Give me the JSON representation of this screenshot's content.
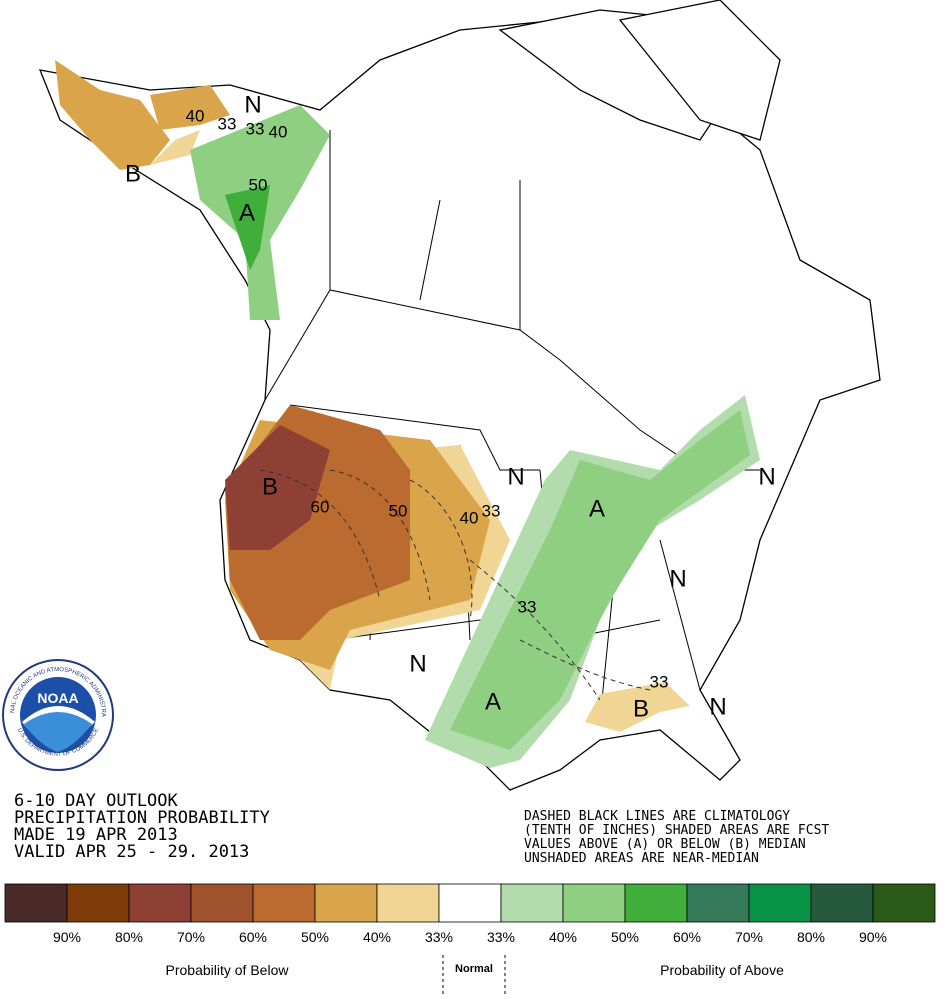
{
  "map": {
    "labels": [
      "40",
      "33",
      "33",
      "40",
      "N",
      "B",
      "50",
      "A",
      "B",
      "60",
      "50",
      "40",
      "33",
      "N",
      "A",
      "33",
      "N",
      "A",
      "N",
      "N",
      "33",
      "B",
      "N"
    ],
    "logo": {
      "name": "NOAA",
      "ring_top": "NATIONAL OCEANIC AND ATMOSPHERIC ADMINISTRATION",
      "ring_bottom": "U.S. DEPARTMENT OF COMMERCE"
    },
    "title_lines": [
      "6-10 DAY OUTLOOK",
      "PRECIPITATION PROBABILITY",
      "MADE  19 APR 2013",
      "VALID  APR 25 - 29. 2013"
    ],
    "note_lines": [
      "DASHED BLACK LINES ARE CLIMATOLOGY",
      "(TENTH OF INCHES) SHADED AREAS ARE FCST",
      "VALUES ABOVE (A) OR BELOW (B) MEDIAN",
      "UNSHADED AREAS ARE NEAR-MEDIAN"
    ]
  },
  "legend": {
    "colors": [
      "#4a2a27",
      "#7f3a0a",
      "#8e4035",
      "#a0522d",
      "#bb6b30",
      "#daa54a",
      "#f1d594",
      "#ffffff",
      "#b2dcab",
      "#8fcf82",
      "#40ae3a",
      "#357a5a",
      "#079246",
      "#255a3d",
      "#2b5a18"
    ],
    "percent_labels": [
      "90%",
      "80%",
      "70%",
      "60%",
      "50%",
      "40%",
      "33%",
      "33%",
      "40%",
      "50%",
      "60%",
      "70%",
      "80%",
      "90%"
    ],
    "below": "Probability of Below",
    "normal": "Normal",
    "above": "Probability of Above"
  }
}
